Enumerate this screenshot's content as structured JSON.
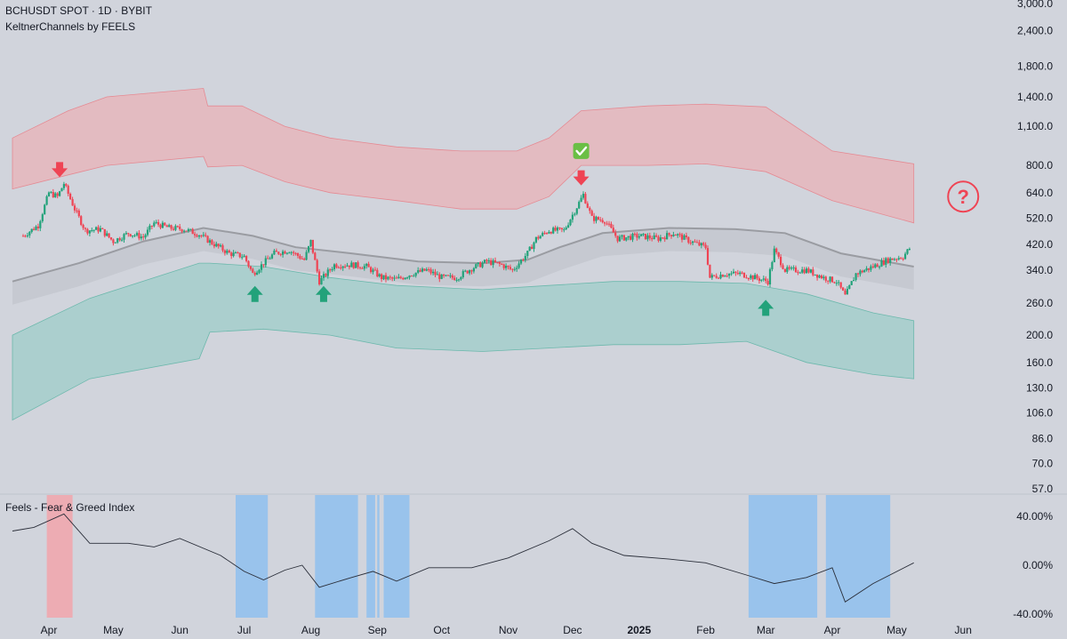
{
  "header": {
    "title": "BCHUSDT SPOT · 1D · BYBIT",
    "indicator": "KeltnerChannels by FEELS"
  },
  "oscillator": {
    "title": "Feels - Fear & Greed Index"
  },
  "colors": {
    "background": "#d1d4dc",
    "up": "#22a27a",
    "down": "#ef4454",
    "upper_band": "#f2a5ab",
    "lower_band": "#8ccbc2",
    "mid_line": "#9a9ca2",
    "fear_zone": "#8fbfee",
    "greed_zone": "#f2a5ab",
    "check": "#6abf45"
  },
  "chart_data": [
    {
      "type": "candlestick",
      "title": "BCHUSDT SPOT · 1D · BYBIT",
      "subtitle": "KeltnerChannels by FEELS",
      "y_scale": "log",
      "ylim": [
        54,
        3050
      ],
      "y_ticks": [
        "3,000.0",
        "2,400.0",
        "1,800.0",
        "1,400.0",
        "1,100.0",
        "800.0",
        "640.0",
        "520.0",
        "420.0",
        "340.0",
        "260.0",
        "200.0",
        "160.0",
        "130.0",
        "106.0",
        "86.0",
        "70.0",
        "57.0"
      ],
      "x_ticks": [
        "Apr",
        "May",
        "Jun",
        "Jul",
        "Aug",
        "Sep",
        "Oct",
        "Nov",
        "Dec",
        "2025",
        "Feb",
        "Mar",
        "Apr",
        "May",
        "Jun"
      ],
      "close_path": [
        [
          "2024-03-20",
          450
        ],
        [
          "2024-03-27",
          490
        ],
        [
          "2024-04-01",
          640
        ],
        [
          "2024-04-05",
          620
        ],
        [
          "2024-04-08",
          690
        ],
        [
          "2024-04-13",
          560
        ],
        [
          "2024-04-18",
          470
        ],
        [
          "2024-04-25",
          475
        ],
        [
          "2024-05-01",
          430
        ],
        [
          "2024-05-08",
          460
        ],
        [
          "2024-05-15",
          445
        ],
        [
          "2024-05-20",
          500
        ],
        [
          "2024-05-27",
          480
        ],
        [
          "2024-06-03",
          475
        ],
        [
          "2024-06-10",
          455
        ],
        [
          "2024-06-17",
          420
        ],
        [
          "2024-06-24",
          390
        ],
        [
          "2024-07-01",
          380
        ],
        [
          "2024-07-05",
          330
        ],
        [
          "2024-07-10",
          360
        ],
        [
          "2024-07-15",
          390
        ],
        [
          "2024-07-22",
          400
        ],
        [
          "2024-07-29",
          370
        ],
        [
          "2024-08-01",
          430
        ],
        [
          "2024-08-05",
          310
        ],
        [
          "2024-08-12",
          355
        ],
        [
          "2024-08-20",
          355
        ],
        [
          "2024-08-27",
          350
        ],
        [
          "2024-09-03",
          320
        ],
        [
          "2024-09-10",
          315
        ],
        [
          "2024-09-17",
          330
        ],
        [
          "2024-09-24",
          340
        ],
        [
          "2024-10-01",
          320
        ],
        [
          "2024-10-08",
          320
        ],
        [
          "2024-10-15",
          345
        ],
        [
          "2024-10-22",
          365
        ],
        [
          "2024-10-29",
          355
        ],
        [
          "2024-11-03",
          340
        ],
        [
          "2024-11-10",
          390
        ],
        [
          "2024-11-14",
          440
        ],
        [
          "2024-11-20",
          470
        ],
        [
          "2024-11-27",
          470
        ],
        [
          "2024-12-03",
          570
        ],
        [
          "2024-12-06",
          630
        ],
        [
          "2024-12-10",
          520
        ],
        [
          "2024-12-16",
          510
        ],
        [
          "2024-12-22",
          440
        ],
        [
          "2025-01-01",
          450
        ],
        [
          "2025-01-10",
          440
        ],
        [
          "2025-01-17",
          460
        ],
        [
          "2025-01-25",
          430
        ],
        [
          "2025-02-01",
          410
        ],
        [
          "2025-02-03",
          320
        ],
        [
          "2025-02-10",
          330
        ],
        [
          "2025-02-17",
          330
        ],
        [
          "2025-02-24",
          320
        ],
        [
          "2025-03-02",
          310
        ],
        [
          "2025-03-05",
          400
        ],
        [
          "2025-03-10",
          340
        ],
        [
          "2025-03-20",
          340
        ],
        [
          "2025-03-28",
          320
        ],
        [
          "2025-04-03",
          310
        ],
        [
          "2025-04-07",
          275
        ],
        [
          "2025-04-12",
          330
        ],
        [
          "2025-04-20",
          350
        ],
        [
          "2025-04-27",
          370
        ],
        [
          "2025-05-04",
          380
        ],
        [
          "2025-05-08",
          415
        ]
      ],
      "series": [
        {
          "name": "Upper band",
          "points": [
            [
              "2024-03-15",
              1000,
              660
            ],
            [
              "2024-04-10",
              1250,
              740
            ],
            [
              "2024-04-28",
              1400,
              800
            ],
            [
              "2024-06-12",
              1500,
              860
            ],
            [
              "2024-06-14",
              1300,
              790
            ],
            [
              "2024-06-30",
              1300,
              800
            ],
            [
              "2024-07-20",
              1100,
              700
            ],
            [
              "2024-08-10",
              1000,
              640
            ],
            [
              "2024-09-10",
              930,
              600
            ],
            [
              "2024-10-10",
              900,
              560
            ],
            [
              "2024-11-05",
              900,
              560
            ],
            [
              "2024-11-20",
              1000,
              620
            ],
            [
              "2024-12-05",
              1250,
              800
            ],
            [
              "2025-01-05",
              1300,
              800
            ],
            [
              "2025-02-01",
              1320,
              810
            ],
            [
              "2025-03-01",
              1290,
              760
            ],
            [
              "2025-04-01",
              900,
              600
            ],
            [
              "2025-05-09",
              810,
              500
            ]
          ]
        },
        {
          "name": "Basis",
          "points": [
            [
              "2024-03-15",
              310
            ],
            [
              "2024-04-15",
              360
            ],
            [
              "2024-05-15",
              430
            ],
            [
              "2024-06-12",
              480
            ],
            [
              "2024-07-05",
              450
            ],
            [
              "2024-07-25",
              410
            ],
            [
              "2024-08-20",
              390
            ],
            [
              "2024-09-20",
              365
            ],
            [
              "2024-10-20",
              360
            ],
            [
              "2024-11-10",
              370
            ],
            [
              "2024-11-25",
              410
            ],
            [
              "2024-12-15",
              460
            ],
            [
              "2025-01-15",
              480
            ],
            [
              "2025-02-15",
              475
            ],
            [
              "2025-03-10",
              460
            ],
            [
              "2025-04-05",
              390
            ],
            [
              "2025-05-09",
              350
            ]
          ]
        },
        {
          "name": "Lower band",
          "points": [
            [
              "2024-03-15",
              200,
              100
            ],
            [
              "2024-04-20",
              270,
              140
            ],
            [
              "2024-06-10",
              360,
              165
            ],
            [
              "2024-06-15",
              360,
              205
            ],
            [
              "2024-07-10",
              350,
              210
            ],
            [
              "2024-08-10",
              320,
              200
            ],
            [
              "2024-09-10",
              300,
              180
            ],
            [
              "2024-10-20",
              290,
              175
            ],
            [
              "2024-11-20",
              300,
              180
            ],
            [
              "2024-12-20",
              310,
              185
            ],
            [
              "2025-01-20",
              310,
              185
            ],
            [
              "2025-02-20",
              305,
              190
            ],
            [
              "2025-03-20",
              280,
              160
            ],
            [
              "2025-04-20",
              240,
              145
            ],
            [
              "2025-05-09",
              225,
              140
            ]
          ]
        }
      ],
      "annotations": [
        {
          "type": "down-arrow",
          "date": "2024-04-06",
          "price": 770
        },
        {
          "type": "up-arrow",
          "date": "2024-07-06",
          "price": 280
        },
        {
          "type": "up-arrow",
          "date": "2024-08-07",
          "price": 280
        },
        {
          "type": "down-arrow",
          "date": "2024-12-05",
          "price": 720
        },
        {
          "type": "check",
          "date": "2024-12-05",
          "price": 900
        },
        {
          "type": "up-arrow",
          "date": "2025-03-01",
          "price": 250
        },
        {
          "type": "question",
          "date": "2025-06-01",
          "price": 620
        }
      ]
    },
    {
      "type": "line",
      "title": "Feels - Fear & Greed Index",
      "ylim": [
        -40,
        50
      ],
      "y_ticks": [
        "40.00%",
        "0.00%",
        "-40.00%"
      ],
      "x": [
        "2024-03-15",
        "2024-03-25",
        "2024-04-08",
        "2024-04-20",
        "2024-05-08",
        "2024-05-20",
        "2024-06-01",
        "2024-06-20",
        "2024-07-01",
        "2024-07-10",
        "2024-07-20",
        "2024-07-28",
        "2024-08-05",
        "2024-08-20",
        "2024-08-30",
        "2024-09-10",
        "2024-09-25",
        "2024-10-15",
        "2024-11-01",
        "2024-11-20",
        "2024-12-01",
        "2024-12-10",
        "2024-12-25",
        "2025-01-15",
        "2025-02-01",
        "2025-02-20",
        "2025-03-05",
        "2025-03-20",
        "2025-04-01",
        "2025-04-07",
        "2025-04-20",
        "2025-05-09"
      ],
      "values": [
        28,
        31,
        42,
        18,
        18,
        15,
        22,
        8,
        -5,
        -12,
        -4,
        0,
        -18,
        -10,
        -5,
        -13,
        -2,
        -2,
        6,
        20,
        30,
        18,
        8,
        5,
        2,
        -8,
        -15,
        -10,
        -2,
        -30,
        -15,
        2
      ],
      "zones": [
        {
          "kind": "greed",
          "from": "2024-03-31",
          "to": "2024-04-12"
        },
        {
          "kind": "fear",
          "from": "2024-06-27",
          "to": "2024-07-12"
        },
        {
          "kind": "fear",
          "from": "2024-08-03",
          "to": "2024-08-23"
        },
        {
          "kind": "fear",
          "from": "2024-08-27",
          "to": "2024-08-31"
        },
        {
          "kind": "fear",
          "from": "2024-09-01",
          "to": "2024-09-02"
        },
        {
          "kind": "fear",
          "from": "2024-09-04",
          "to": "2024-09-16"
        },
        {
          "kind": "fear",
          "from": "2025-02-21",
          "to": "2025-03-25"
        },
        {
          "kind": "fear",
          "from": "2025-03-29",
          "to": "2025-04-28"
        }
      ]
    }
  ]
}
